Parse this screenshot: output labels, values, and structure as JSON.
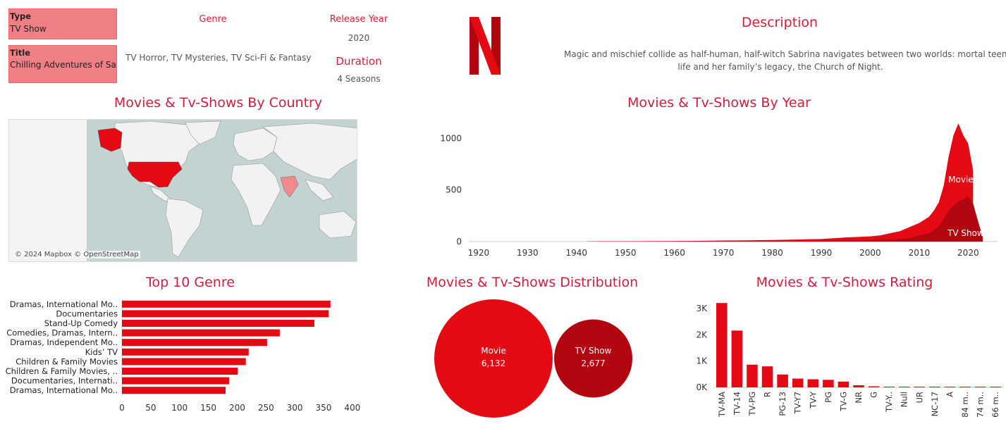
{
  "filters": {
    "type": {
      "label": "Type",
      "value": "TV Show"
    },
    "title": {
      "label": "Title",
      "value": "Chilling Adventures of Sa.."
    }
  },
  "details": {
    "genre_label": "Genre",
    "genre_value": "TV Horror, TV Mysteries, TV Sci-Fi & Fantasy",
    "release_year_label": "Release Year",
    "release_year_value": "2020",
    "duration_label": "Duration",
    "duration_value": "4 Seasons",
    "description_label": "Description",
    "description_line1": "Magic and mischief collide as half-human, half-witch Sabrina navigates between two worlds: mortal teen",
    "description_line2": "life and her family’s legacy, the Church of Night."
  },
  "logo": {
    "letter": "N",
    "color": "#e50914"
  },
  "map": {
    "title": "Movies & Tv-Shows By Country",
    "attribution": "© 2024 Mapbox © OpenStreetMap",
    "ocean_color": "#c3d3d2",
    "land_color": "#f2f2f2",
    "highlighted": [
      {
        "name": "United States",
        "color": "#e50914"
      },
      {
        "name": "India",
        "color": "#f08a8f"
      }
    ]
  },
  "colors": {
    "movie": "#e50914",
    "tv": "#b20710",
    "accent": "#d11d3e"
  },
  "chart_data": [
    {
      "type": "area",
      "title": "Movies & Tv-Shows By Year",
      "x_ticks": [
        1920,
        1930,
        1940,
        1950,
        1960,
        1970,
        1980,
        1990,
        2000,
        2010,
        2020
      ],
      "y_ticks": [
        0,
        500,
        1000
      ],
      "xlim": [
        1918,
        2026
      ],
      "ylim": [
        0,
        1180
      ],
      "labels": {
        "movie": "Movie",
        "tv": "TV Show"
      },
      "series": [
        {
          "name": "Movie",
          "x": [
            1942,
            1945,
            1950,
            1955,
            1960,
            1965,
            1970,
            1975,
            1980,
            1985,
            1990,
            1995,
            2000,
            2002,
            2004,
            2006,
            2008,
            2010,
            2012,
            2013,
            2014,
            2015,
            2016,
            2017,
            2018,
            2019,
            2020,
            2021
          ],
          "values": [
            2,
            3,
            3,
            4,
            5,
            7,
            10,
            12,
            15,
            20,
            25,
            40,
            50,
            60,
            80,
            100,
            140,
            180,
            240,
            300,
            380,
            540,
            820,
            1030,
            1145,
            1030,
            950,
            690
          ]
        },
        {
          "name": "TV Show",
          "x": [
            1942,
            1990,
            1995,
            2000,
            2005,
            2008,
            2010,
            2012,
            2013,
            2014,
            2015,
            2016,
            2017,
            2018,
            2019,
            2020,
            2021,
            2022,
            2023
          ],
          "values": [
            0,
            5,
            8,
            12,
            20,
            35,
            60,
            80,
            110,
            150,
            220,
            300,
            350,
            390,
            410,
            440,
            370,
            200,
            40
          ]
        }
      ]
    },
    {
      "type": "bar",
      "title": "Top 10 Genre",
      "orientation": "horizontal",
      "categories": [
        "Dramas, International Mo..",
        "Documentaries",
        "Stand-Up Comedy",
        "Comedies, Dramas, Intern..",
        "Dramas, Independent Mo..",
        "Kids’ TV",
        "Children & Family Movies",
        "Children & Family Movies, ..",
        "Documentaries, Internati..",
        "Dramas, International Mo.."
      ],
      "values": [
        362,
        359,
        334,
        274,
        252,
        220,
        215,
        201,
        186,
        180
      ],
      "x_ticks": [
        0,
        50,
        100,
        150,
        200,
        250,
        300,
        350,
        400
      ],
      "xlim": [
        0,
        410
      ]
    },
    {
      "type": "bubble",
      "title": "Movies & Tv-Shows Distribution",
      "categories": [
        "Movie",
        "TV Show"
      ],
      "values": [
        6132,
        2677
      ],
      "value_labels": [
        "6,132",
        "2,677"
      ]
    },
    {
      "type": "bar",
      "title": "Movies & Tv-Shows Rating",
      "categories": [
        "TV-MA",
        "TV-14",
        "TV-PG",
        "R",
        "PG-13",
        "TV-Y7",
        "TV-Y",
        "PG",
        "TV-G",
        "NR",
        "G",
        "TV-Y..",
        "Null",
        "UR",
        "NC-17",
        "A",
        "84 m..",
        "74 m..",
        "66 m.."
      ],
      "values": [
        3207,
        2160,
        863,
        799,
        490,
        334,
        307,
        287,
        220,
        80,
        41,
        6,
        4,
        3,
        3,
        1,
        1,
        1,
        1
      ],
      "y_ticks": [
        0,
        1000,
        2000,
        3000
      ],
      "y_tick_labels": [
        "0K",
        "1K",
        "2K",
        "3K"
      ],
      "ylim": [
        0,
        3400
      ]
    }
  ]
}
